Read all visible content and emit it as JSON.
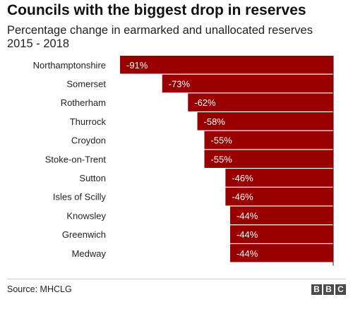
{
  "title": "Councils with the biggest drop in reserves",
  "subtitle": "Percentage change in earmarked and unallocated reserves 2015 - 2018",
  "source": "Source: MHCLG",
  "logo_letters": [
    "B",
    "B",
    "C"
  ],
  "bar_color": "#990000",
  "chart_data": {
    "type": "bar",
    "orientation": "horizontal",
    "categories": [
      "Northamptonshire",
      "Somerset",
      "Rotherham",
      "Thurrock",
      "Croydon",
      "Stoke-on-Trent",
      "Sutton",
      "Isles of Scilly",
      "Knowsley",
      "Greenwich",
      "Medway"
    ],
    "values": [
      -91,
      -73,
      -62,
      -58,
      -55,
      -55,
      -46,
      -46,
      -44,
      -44,
      -44
    ],
    "data_labels": [
      "-91%",
      "-73%",
      "-62%",
      "-58%",
      "-55%",
      "-55%",
      "-46%",
      "-46%",
      "-44%",
      "-44%",
      "-44%"
    ],
    "xlim": [
      -91,
      0
    ],
    "grid": false,
    "legend": "none"
  }
}
